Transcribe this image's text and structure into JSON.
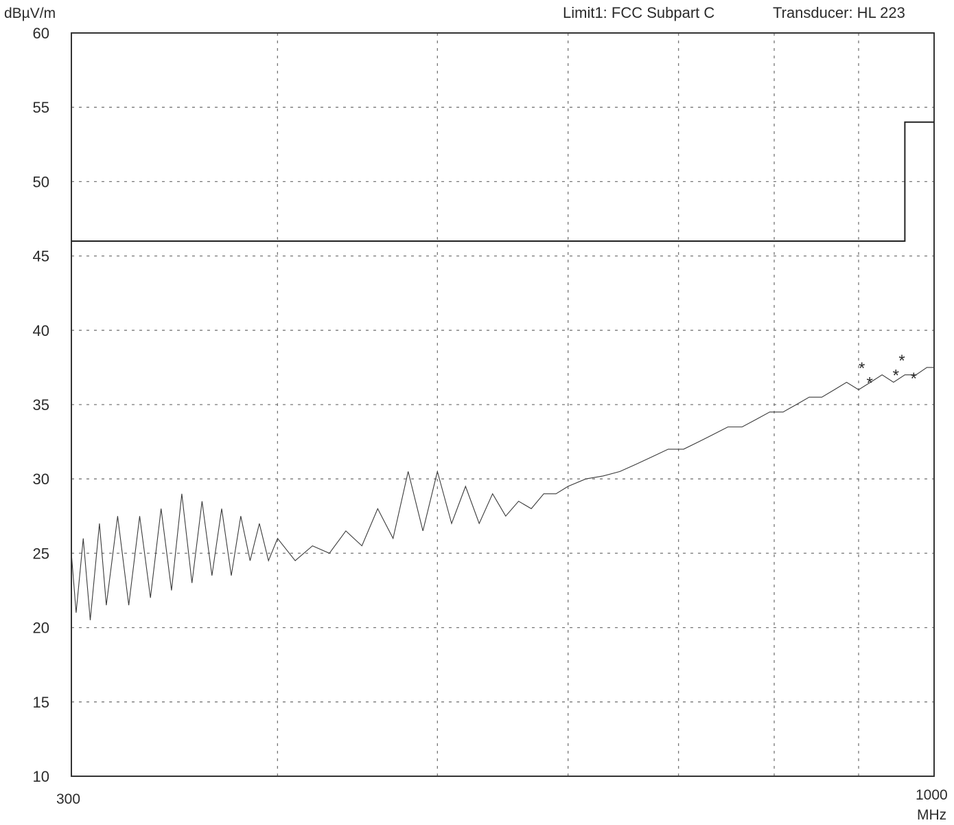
{
  "chart_data": {
    "type": "line",
    "ylabel": "dBµV/m",
    "xunit": "MHz",
    "xscale": "log",
    "xlim": [
      300,
      1000
    ],
    "ylim": [
      10,
      60
    ],
    "yticks": [
      10,
      15,
      20,
      25,
      30,
      35,
      40,
      45,
      50,
      55,
      60
    ],
    "xtick_labels": [
      "300",
      "1000"
    ],
    "x_gridlines": [
      400,
      500,
      600,
      700,
      800,
      900
    ],
    "header": {
      "limit": "Limit1: FCC Subpart C",
      "transducer": "Transducer: HL 223"
    },
    "grid": true,
    "colors": {
      "trace": "#3a3a3a",
      "grid": "#777777",
      "frame": "#333333"
    },
    "limit_line": {
      "x": [
        300,
        960,
        960,
        1000
      ],
      "y": [
        46,
        46,
        54,
        54
      ]
    },
    "series": [
      {
        "x": [
          300,
          302,
          305,
          308,
          312,
          315,
          320,
          325,
          330,
          335,
          340,
          345,
          350,
          355,
          360,
          365,
          370,
          375,
          380,
          385,
          390,
          395,
          400,
          410,
          420,
          430,
          440,
          450,
          460,
          470,
          480,
          490,
          500,
          510,
          520,
          530,
          540,
          550,
          560,
          570,
          580,
          590,
          600,
          615,
          630,
          645,
          660,
          675,
          690,
          705,
          720,
          735,
          750,
          765,
          780,
          795,
          810,
          825,
          840,
          855,
          870,
          885,
          900,
          915,
          930,
          945,
          960,
          975,
          990,
          1000
        ],
        "y": [
          25,
          21,
          26,
          20.5,
          27,
          21.5,
          27.5,
          21.5,
          27.5,
          22,
          28,
          22.5,
          29,
          23,
          28.5,
          23.5,
          28,
          23.5,
          27.5,
          24.5,
          27,
          24.5,
          26,
          24.5,
          25.5,
          25,
          26.5,
          25.5,
          28,
          26,
          30.5,
          26.5,
          30.5,
          27,
          29.5,
          27,
          29,
          27.5,
          28.5,
          28,
          29,
          29,
          29.5,
          30,
          30.2,
          30.5,
          31,
          31.5,
          32,
          32,
          32.5,
          33,
          33.5,
          33.5,
          34,
          34.5,
          34.5,
          35,
          35.5,
          35.5,
          36,
          36.5,
          36,
          36.5,
          37,
          36.5,
          37,
          37,
          37.5,
          37.5
        ]
      }
    ],
    "markers": [
      {
        "x": 904,
        "y": 37.5
      },
      {
        "x": 914,
        "y": 36.5
      },
      {
        "x": 948,
        "y": 37
      },
      {
        "x": 956,
        "y": 38
      },
      {
        "x": 972,
        "y": 36.8
      }
    ]
  }
}
